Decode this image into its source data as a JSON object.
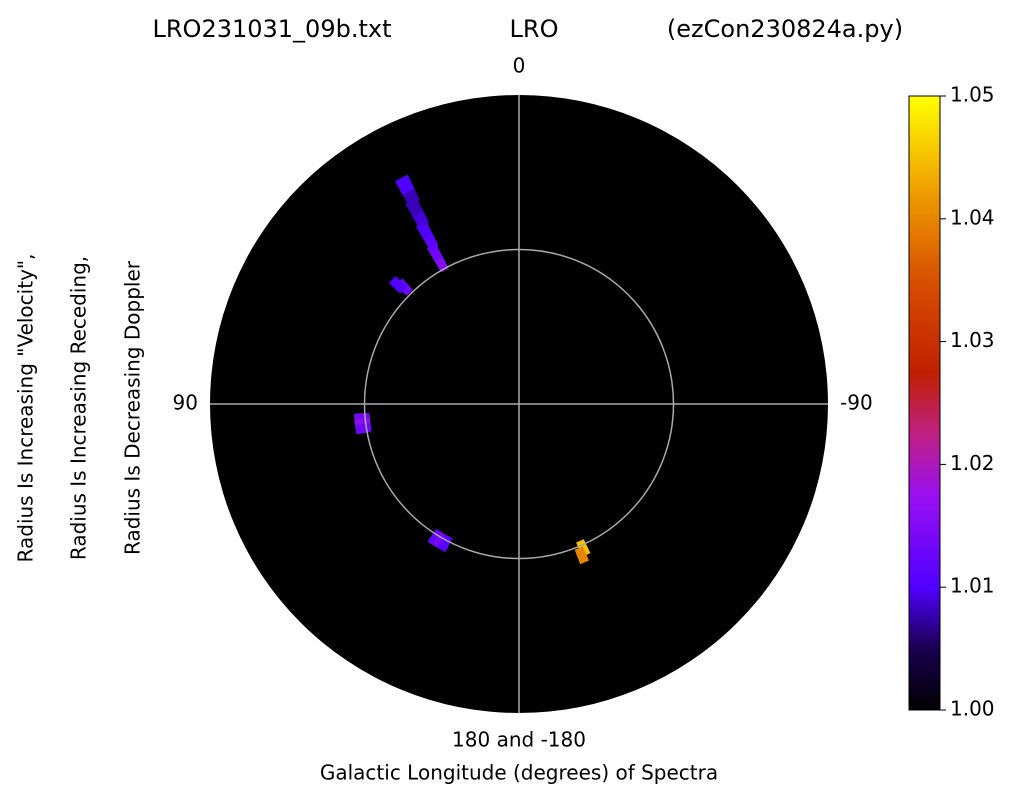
{
  "chart_data": {
    "type": "polar-heatmap",
    "title_left": "LRO231031_09b.txt",
    "title_center": "LRO",
    "title_right": "(ezCon230824a.py)",
    "x_label": "Galactic Longitude (degrees) of Spectra",
    "y_label": [
      "Radius Is Increasing \"Velocity\",",
      "Radius Is Increasing Receding,",
      "Radius Is Decreasing Doppler"
    ],
    "angle_ticks": [
      {
        "value": 0,
        "label": "0"
      },
      {
        "value": 90,
        "label": "90"
      },
      {
        "value": -90,
        "label": "-90"
      },
      {
        "value": 180,
        "label": "180 and -180"
      }
    ],
    "rlim": [
      0,
      1
    ],
    "rticks": [
      0.5
    ],
    "points": {
      "longitude": [
        29,
        29,
        28.5,
        28.5,
        28,
        28,
        27.5,
        27.5,
        44.5,
        45.5,
        95,
        97,
        99,
        148,
        150,
        152,
        -156,
        -157.5
      ],
      "radius": [
        0.52,
        0.56,
        0.6,
        0.64,
        0.68,
        0.72,
        0.76,
        0.8,
        0.53,
        0.55,
        0.51,
        0.51,
        0.51,
        0.51,
        0.51,
        0.51,
        0.51,
        0.53
      ],
      "values": [
        1.015,
        1.013,
        1.011,
        1.01,
        1.009,
        1.008,
        1.008,
        1.01,
        1.013,
        1.01,
        1.014,
        1.016,
        1.013,
        1.012,
        1.014,
        1.011,
        1.045,
        1.04
      ]
    },
    "clim": [
      1.0,
      1.05
    ],
    "cticks": [
      {
        "value": 1.0,
        "label": "1.00"
      },
      {
        "value": 1.01,
        "label": "1.01"
      },
      {
        "value": 1.02,
        "label": "1.02"
      },
      {
        "value": 1.03,
        "label": "1.03"
      },
      {
        "value": 1.04,
        "label": "1.04"
      },
      {
        "value": 1.05,
        "label": "1.05"
      }
    ],
    "colormap": "gnuplot2",
    "grid": true
  }
}
